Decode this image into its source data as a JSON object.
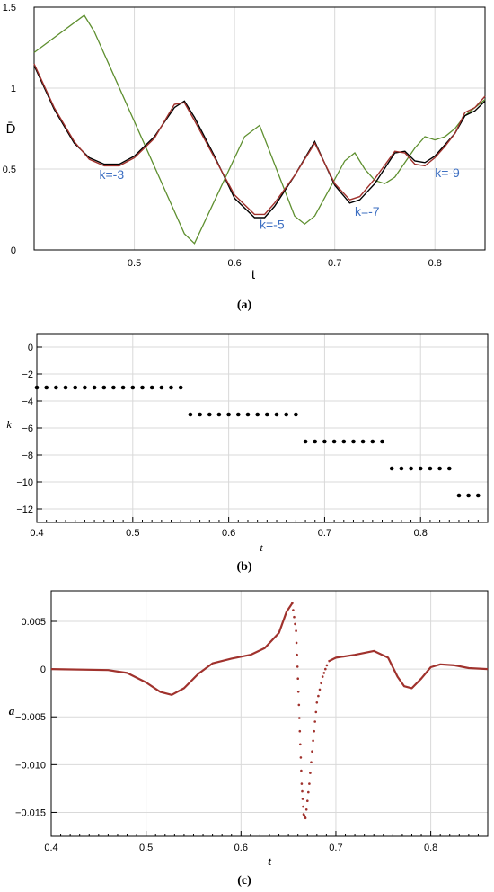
{
  "chart_data": [
    {
      "id": "a",
      "type": "line",
      "caption": "(a)",
      "xlabel": "t",
      "ylabel": "D̄",
      "xlim": [
        0.4,
        0.85
      ],
      "ylim": [
        0,
        1.5
      ],
      "xticks": [
        0.5,
        0.6,
        0.7,
        0.8
      ],
      "xtick_labels": [
        "0.5",
        "0.6",
        "0.7",
        "0.8"
      ],
      "yticks": [
        0,
        0.5,
        1,
        1.5
      ],
      "ytick_labels": [
        "0",
        "0.5",
        "1",
        "1.5"
      ],
      "grid": true,
      "series": [
        {
          "color": "#5e8f2f",
          "x": [
            0.4,
            0.45,
            0.46,
            0.55,
            0.56,
            0.61,
            0.625,
            0.66,
            0.67,
            0.68,
            0.71,
            0.72,
            0.73,
            0.74,
            0.75,
            0.76,
            0.77,
            0.78,
            0.79,
            0.8,
            0.81,
            0.82,
            0.83,
            0.84,
            0.85
          ],
          "y": [
            1.22,
            1.45,
            1.35,
            0.1,
            0.04,
            0.7,
            0.77,
            0.21,
            0.16,
            0.21,
            0.55,
            0.6,
            0.5,
            0.43,
            0.41,
            0.45,
            0.54,
            0.63,
            0.7,
            0.68,
            0.7,
            0.75,
            0.83,
            0.88,
            0.93
          ]
        },
        {
          "color": "#000000",
          "x": [
            0.4,
            0.42,
            0.44,
            0.455,
            0.47,
            0.485,
            0.5,
            0.52,
            0.54,
            0.55,
            0.56,
            0.58,
            0.6,
            0.62,
            0.63,
            0.64,
            0.66,
            0.68,
            0.7,
            0.715,
            0.725,
            0.74,
            0.76,
            0.77,
            0.78,
            0.79,
            0.8,
            0.81,
            0.82,
            0.83,
            0.84,
            0.85
          ],
          "y": [
            1.14,
            0.87,
            0.66,
            0.57,
            0.53,
            0.53,
            0.58,
            0.7,
            0.88,
            0.92,
            0.82,
            0.58,
            0.32,
            0.2,
            0.2,
            0.27,
            0.46,
            0.67,
            0.4,
            0.29,
            0.31,
            0.41,
            0.6,
            0.61,
            0.55,
            0.54,
            0.58,
            0.65,
            0.72,
            0.83,
            0.86,
            0.92
          ]
        },
        {
          "color": "#a0322d",
          "x": [
            0.4,
            0.42,
            0.44,
            0.455,
            0.47,
            0.485,
            0.5,
            0.52,
            0.54,
            0.55,
            0.56,
            0.58,
            0.6,
            0.62,
            0.63,
            0.64,
            0.66,
            0.68,
            0.7,
            0.715,
            0.725,
            0.74,
            0.76,
            0.77,
            0.78,
            0.79,
            0.8,
            0.81,
            0.82,
            0.83,
            0.84,
            0.85
          ],
          "y": [
            1.15,
            0.88,
            0.67,
            0.56,
            0.52,
            0.52,
            0.57,
            0.69,
            0.9,
            0.91,
            0.8,
            0.57,
            0.34,
            0.22,
            0.22,
            0.29,
            0.46,
            0.66,
            0.41,
            0.31,
            0.33,
            0.44,
            0.61,
            0.6,
            0.53,
            0.52,
            0.57,
            0.64,
            0.72,
            0.85,
            0.88,
            0.95
          ]
        }
      ],
      "annotations": [
        {
          "text": "k=-3",
          "x": 0.465,
          "y": 0.44
        },
        {
          "text": "k=-5",
          "x": 0.625,
          "y": 0.13
        },
        {
          "text": "k=-7",
          "x": 0.72,
          "y": 0.21
        },
        {
          "text": "k=-9",
          "x": 0.8,
          "y": 0.45
        }
      ]
    },
    {
      "id": "b",
      "type": "scatter",
      "caption": "(b)",
      "xlabel": "t",
      "ylabel": "k",
      "xlim": [
        0.4,
        0.87
      ],
      "ylim": [
        -13,
        1
      ],
      "xticks": [
        0.4,
        0.5,
        0.6,
        0.7,
        0.8
      ],
      "xtick_labels": [
        "0.4",
        "0.5",
        "0.6",
        "0.7",
        "0.8"
      ],
      "yticks": [
        0,
        -2,
        -4,
        -6,
        -8,
        -10,
        -12
      ],
      "ytick_labels": [
        "0",
        "−2",
        "−4",
        "−6",
        "−8",
        "−10",
        "−12"
      ],
      "grid": true,
      "groups": [
        {
          "k": -3,
          "t_start": 0.4,
          "t_end": 0.55
        },
        {
          "k": -5,
          "t_start": 0.56,
          "t_end": 0.67
        },
        {
          "k": -7,
          "t_start": 0.68,
          "t_end": 0.76
        },
        {
          "k": -9,
          "t_start": 0.77,
          "t_end": 0.83
        },
        {
          "k": -11,
          "t_start": 0.84,
          "t_end": 0.86
        }
      ],
      "step": 0.01,
      "color": "#000000"
    },
    {
      "id": "c",
      "type": "line",
      "caption": "(c)",
      "xlabel": "t",
      "ylabel": "a",
      "xlim": [
        0.4,
        0.86
      ],
      "ylim": [
        -0.0175,
        0.0082
      ],
      "xticks": [
        0.4,
        0.5,
        0.6,
        0.7,
        0.8
      ],
      "xtick_labels": [
        "0.4",
        "0.5",
        "0.6",
        "0.7",
        "0.8"
      ],
      "yticks": [
        0.005,
        0,
        -0.005,
        -0.01,
        -0.015
      ],
      "ytick_labels": [
        "0.005",
        "0",
        "−0.005",
        "−0.010",
        "−0.015"
      ],
      "grid": true,
      "color": "#a0322d",
      "series": [
        {
          "x": [
            0.4,
            0.46,
            0.48,
            0.5,
            0.515,
            0.527,
            0.54,
            0.555,
            0.57,
            0.59,
            0.61,
            0.625,
            0.64,
            0.648,
            0.654,
            0.658,
            0.66,
            0.662,
            0.664,
            0.666,
            0.668,
            0.672,
            0.676,
            0.68,
            0.686,
            0.692,
            0.7,
            0.72,
            0.74,
            0.755,
            0.765,
            0.772,
            0.78,
            0.79,
            0.8,
            0.81,
            0.825,
            0.84,
            0.86
          ],
          "y": [
            0,
            -0.0001,
            -0.0004,
            -0.0014,
            -0.0024,
            -0.0027,
            -0.002,
            -0.0005,
            0.0006,
            0.0011,
            0.0015,
            0.0022,
            0.0038,
            0.006,
            0.0069,
            0.004,
            -0.001,
            -0.0065,
            -0.012,
            -0.0152,
            -0.0156,
            -0.012,
            -0.0075,
            -0.0035,
            -0.0008,
            0.0008,
            0.0012,
            0.0015,
            0.0019,
            0.0012,
            -0.0008,
            -0.0018,
            -0.002,
            -0.001,
            0.0002,
            0.0005,
            0.0004,
            0.0001,
            0
          ]
        }
      ]
    }
  ]
}
